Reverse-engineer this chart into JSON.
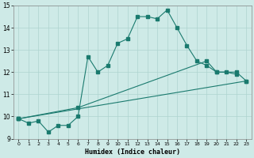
{
  "xlabel": "Humidex (Indice chaleur)",
  "bg_color": "#ceeae7",
  "grid_color": "#aed4d0",
  "line_color": "#1a7a6e",
  "x_min": -0.5,
  "x_max": 23.5,
  "y_min": 9,
  "y_max": 15,
  "line1_x": [
    0,
    1,
    2,
    3,
    4,
    5,
    6,
    7,
    8,
    9,
    10,
    11,
    12,
    13,
    14,
    15,
    16,
    17,
    18,
    19,
    20,
    21,
    22
  ],
  "line1_y": [
    9.9,
    9.7,
    9.8,
    9.3,
    9.6,
    9.6,
    10.0,
    12.7,
    12.0,
    12.3,
    13.3,
    13.5,
    14.5,
    14.5,
    14.4,
    14.8,
    14.0,
    13.2,
    12.5,
    12.3,
    12.0,
    12.0,
    11.9
  ],
  "line2_x": [
    0,
    23
  ],
  "line2_y": [
    9.9,
    11.6
  ],
  "line3_x": [
    0,
    6,
    19,
    20,
    22,
    23
  ],
  "line3_y": [
    9.9,
    10.4,
    12.5,
    12.0,
    12.0,
    11.6
  ],
  "yticks": [
    9,
    10,
    11,
    12,
    13,
    14,
    15
  ],
  "xticks": [
    0,
    1,
    2,
    3,
    4,
    5,
    6,
    7,
    8,
    9,
    10,
    11,
    12,
    13,
    14,
    15,
    16,
    17,
    18,
    19,
    20,
    21,
    22,
    23
  ]
}
